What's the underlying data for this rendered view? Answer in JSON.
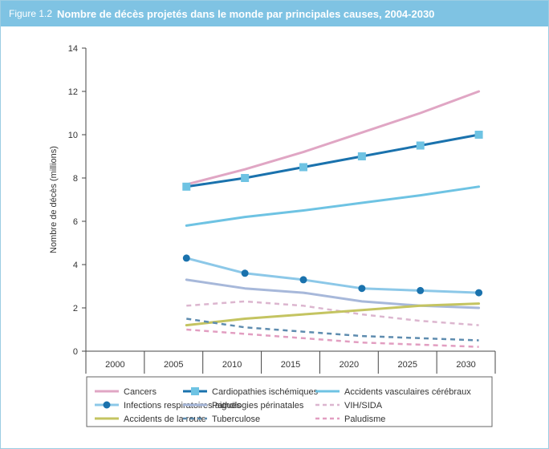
{
  "header": {
    "figure_number": "Figure 1.2",
    "title": "Nombre de décès projetés dans le monde par principales causes, 2004-2030"
  },
  "chart_data": {
    "type": "line",
    "title": "Nombre de décès projetés dans le monde par principales causes, 2004-2030",
    "xlabel": "",
    "ylabel": "Nombre de décès (millions)",
    "categories": [
      "2000",
      "2005",
      "2010",
      "2015",
      "2020",
      "2025",
      "2030"
    ],
    "x_values": [
      2005,
      2010,
      2015,
      2020,
      2025,
      2030
    ],
    "ylim": [
      0,
      14
    ],
    "yticks": [
      "0",
      "2",
      "4",
      "6",
      "8",
      "10",
      "12",
      "14"
    ],
    "grid": false,
    "legend_position": "bottom",
    "series": [
      {
        "name": "Cancers",
        "color": "#e0a6c4",
        "style": "solid",
        "marker": "none",
        "values": [
          7.7,
          8.4,
          9.2,
          10.1,
          11.0,
          12.0
        ]
      },
      {
        "name": "Cardiopathies ischémiques",
        "color": "#1a72ad",
        "style": "solid",
        "marker": "square",
        "values": [
          7.6,
          8.0,
          8.5,
          9.0,
          9.5,
          10.0
        ]
      },
      {
        "name": "Accidents vasculaires cérébraux",
        "color": "#6ec3e3",
        "style": "solid",
        "marker": "none",
        "values": [
          5.8,
          6.2,
          6.5,
          6.85,
          7.2,
          7.6
        ]
      },
      {
        "name": "Infections respiratoires aiguës",
        "color": "#8cc8e8",
        "style": "solid",
        "marker": "circle",
        "values": [
          4.3,
          3.6,
          3.3,
          2.9,
          2.8,
          2.7
        ]
      },
      {
        "name": "Pathologies périnatales",
        "color": "#a7b8da",
        "style": "solid",
        "marker": "none",
        "values": [
          3.3,
          2.9,
          2.7,
          2.3,
          2.1,
          2.0
        ]
      },
      {
        "name": "VIH/SIDA",
        "color": "#dcb6cf",
        "style": "dashed",
        "marker": "none",
        "values": [
          2.1,
          2.3,
          2.1,
          1.7,
          1.4,
          1.2
        ]
      },
      {
        "name": "Accidents de la route",
        "color": "#c4c461",
        "style": "solid",
        "marker": "none",
        "values": [
          1.2,
          1.5,
          1.7,
          1.9,
          2.1,
          2.2
        ]
      },
      {
        "name": "Tuberculose",
        "color": "#5e8caf",
        "style": "dashed",
        "marker": "none",
        "values": [
          1.5,
          1.1,
          0.9,
          0.7,
          0.6,
          0.5
        ]
      },
      {
        "name": "Paludisme",
        "color": "#e29ec1",
        "style": "dashed",
        "marker": "none",
        "values": [
          1.0,
          0.8,
          0.6,
          0.4,
          0.3,
          0.2
        ]
      }
    ],
    "marker_color": "#1a72ad",
    "square_marker_color": "#6ec3e3"
  }
}
